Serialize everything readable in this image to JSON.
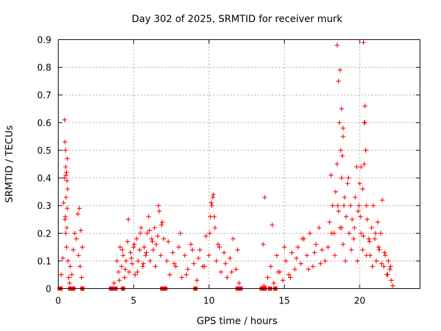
{
  "chart_data": {
    "type": "scatter",
    "title": "Day 302 of 2025, SRMTID for receiver murk",
    "xlabel": "GPS time / hours",
    "ylabel": "SRMTID / TECUs",
    "xlim": [
      0,
      24
    ],
    "ylim": [
      0,
      0.9
    ],
    "x_ticks": [
      0,
      5,
      10,
      15,
      20
    ],
    "y_ticks": [
      0,
      0.1,
      0.2,
      0.3,
      0.4,
      0.5,
      0.6,
      0.7,
      0.8,
      0.9
    ],
    "grid": true,
    "marker": "+",
    "color": "#ff0000",
    "series": [
      {
        "name": "SRMTID",
        "x": [
          0.2,
          0.3,
          0.35,
          0.4,
          0.45,
          0.5,
          0.55,
          0.6,
          0.65,
          0.7,
          0.75,
          0.8,
          0.9,
          1.0,
          1.1,
          1.2,
          1.3,
          1.35,
          1.4,
          1.45,
          1.5,
          1.55,
          1.6,
          0.42,
          0.45,
          0.48,
          0.5,
          0.52,
          0.55,
          0.58,
          0.6,
          0.62,
          0.48,
          0.52,
          0.57,
          3.7,
          3.9,
          4.0,
          4.1,
          4.2,
          4.3,
          4.4,
          4.5,
          4.6,
          4.7,
          4.8,
          4.9,
          5.0,
          5.1,
          5.2,
          5.3,
          5.4,
          5.5,
          5.6,
          5.7,
          5.8,
          5.9,
          6.0,
          6.1,
          6.2,
          6.3,
          6.4,
          6.5,
          6.6,
          6.7,
          6.8,
          6.9,
          7.0,
          4.05,
          4.25,
          4.45,
          4.65,
          4.85,
          5.05,
          5.25,
          5.45,
          5.65,
          5.85,
          6.05,
          6.25,
          6.45,
          6.65,
          6.85,
          7.2,
          7.4,
          7.6,
          7.8,
          8.0,
          8.2,
          8.4,
          8.6,
          8.8,
          9.0,
          9.2,
          9.4,
          9.6,
          9.8,
          10.0,
          10.1,
          10.2,
          10.3,
          10.4,
          10.5,
          10.6,
          10.8,
          11.0,
          11.2,
          11.4,
          11.6,
          11.8,
          12.0,
          7.3,
          7.7,
          8.1,
          8.5,
          8.9,
          9.3,
          9.7,
          10.05,
          10.15,
          10.25,
          10.35,
          10.7,
          11.1,
          11.5,
          11.9,
          13.6,
          13.7,
          13.9,
          14.1,
          14.3,
          14.5,
          14.7,
          14.9,
          15.1,
          15.3,
          15.5,
          15.7,
          15.9,
          16.1,
          16.3,
          16.5,
          16.7,
          16.9,
          17.1,
          17.3,
          17.5,
          17.7,
          14.2,
          14.6,
          15.0,
          15.4,
          15.8,
          16.2,
          16.6,
          17.0,
          17.4,
          13.65,
          17.9,
          18.0,
          18.1,
          18.2,
          18.3,
          18.4,
          18.5,
          18.6,
          18.7,
          18.75,
          18.8,
          18.85,
          18.9,
          18.95,
          19.0,
          19.1,
          19.2,
          19.3,
          19.4,
          19.5,
          19.6,
          19.7,
          19.8,
          19.9,
          20.0,
          20.1,
          20.2,
          20.3,
          20.35,
          20.4,
          20.45,
          20.5,
          20.6,
          20.7,
          20.8,
          20.9,
          21.0,
          21.1,
          21.2,
          21.3,
          21.4,
          21.5,
          21.6,
          21.7,
          21.8,
          21.9,
          22.0,
          22.1,
          22.2,
          18.15,
          18.35,
          18.55,
          18.65,
          18.8,
          18.9,
          19.05,
          19.25,
          19.45,
          19.65,
          19.85,
          20.05,
          20.25,
          20.45,
          20.65,
          20.85,
          21.05,
          21.25,
          21.45,
          21.65,
          21.85,
          22.05,
          18.5,
          18.6,
          18.7,
          18.8,
          18.9,
          20.25,
          20.3,
          20.35,
          20.4,
          20.2,
          20.1,
          19.95,
          0.1,
          0.15,
          0.8,
          1.0,
          1.6,
          3.5,
          3.6,
          3.8,
          4.3,
          6.9,
          7.1,
          9.1,
          11.9,
          12.1,
          13.5,
          13.7,
          14.05,
          14.4
        ],
        "y": [
          0.05,
          0.11,
          0.31,
          0.4,
          0.25,
          0.2,
          0.15,
          0.29,
          0.1,
          0.04,
          0.02,
          0.08,
          0.05,
          0.14,
          0.2,
          0.18,
          0.27,
          0.12,
          0.29,
          0.08,
          0.21,
          0.04,
          0.15,
          0.61,
          0.53,
          0.5,
          0.44,
          0.41,
          0.42,
          0.39,
          0.47,
          0.36,
          0.26,
          0.33,
          0.22,
          0.02,
          0.1,
          0.06,
          0.15,
          0.08,
          0.12,
          0.04,
          0.1,
          0.17,
          0.06,
          0.13,
          0.09,
          0.15,
          0.05,
          0.18,
          0.1,
          0.14,
          0.22,
          0.08,
          0.15,
          0.12,
          0.2,
          0.26,
          0.1,
          0.18,
          0.14,
          0.22,
          0.16,
          0.19,
          0.28,
          0.12,
          0.24,
          0.18,
          0.03,
          0.14,
          0.07,
          0.25,
          0.11,
          0.16,
          0.06,
          0.2,
          0.09,
          0.13,
          0.21,
          0.17,
          0.08,
          0.3,
          0.23,
          0.1,
          0.05,
          0.13,
          0.08,
          0.15,
          0.04,
          0.12,
          0.07,
          0.16,
          0.09,
          0.03,
          0.14,
          0.08,
          0.19,
          0.12,
          0.26,
          0.3,
          0.34,
          0.22,
          0.1,
          0.16,
          0.06,
          0.13,
          0.04,
          0.11,
          0.18,
          0.07,
          0.02,
          0.17,
          0.09,
          0.2,
          0.05,
          0.14,
          0.11,
          0.08,
          0.2,
          0.31,
          0.33,
          0.26,
          0.15,
          0.09,
          0.06,
          0.14,
          0.16,
          0.33,
          0.04,
          0.08,
          0.02,
          0.12,
          0.06,
          0.03,
          0.1,
          0.05,
          0.13,
          0.07,
          0.15,
          0.09,
          0.18,
          0.12,
          0.2,
          0.08,
          0.16,
          0.22,
          0.14,
          0.1,
          0.23,
          0.06,
          0.15,
          0.04,
          0.11,
          0.18,
          0.07,
          0.13,
          0.09,
          0.01,
          0.15,
          0.24,
          0.41,
          0.3,
          0.2,
          0.35,
          0.45,
          0.28,
          0.22,
          0.5,
          0.4,
          0.48,
          0.55,
          0.3,
          0.33,
          0.26,
          0.38,
          0.2,
          0.3,
          0.25,
          0.18,
          0.33,
          0.44,
          0.28,
          0.38,
          0.2,
          0.36,
          0.45,
          0.6,
          0.5,
          0.3,
          0.25,
          0.18,
          0.12,
          0.22,
          0.3,
          0.18,
          0.1,
          0.24,
          0.14,
          0.2,
          0.32,
          0.08,
          0.12,
          0.05,
          0.1,
          0.07,
          0.03,
          0.01,
          0.2,
          0.12,
          0.3,
          0.6,
          0.22,
          0.16,
          0.1,
          0.4,
          0.14,
          0.22,
          0.1,
          0.26,
          0.19,
          0.12,
          0.17,
          0.08,
          0.2,
          0.15,
          0.09,
          0.13,
          0.05,
          0.08,
          0.88,
          0.75,
          0.79,
          0.65,
          0.58,
          0.89,
          0.6,
          0.66,
          0.5,
          0.14,
          0.44,
          0.3,
          0.0,
          0.0,
          0.0,
          0.0,
          0.0,
          0.0,
          0.0,
          0.0,
          0.0,
          0.0,
          0.0,
          0.0,
          0.0,
          0.0,
          0.0,
          0.0,
          0.0,
          0.0
        ]
      }
    ]
  }
}
